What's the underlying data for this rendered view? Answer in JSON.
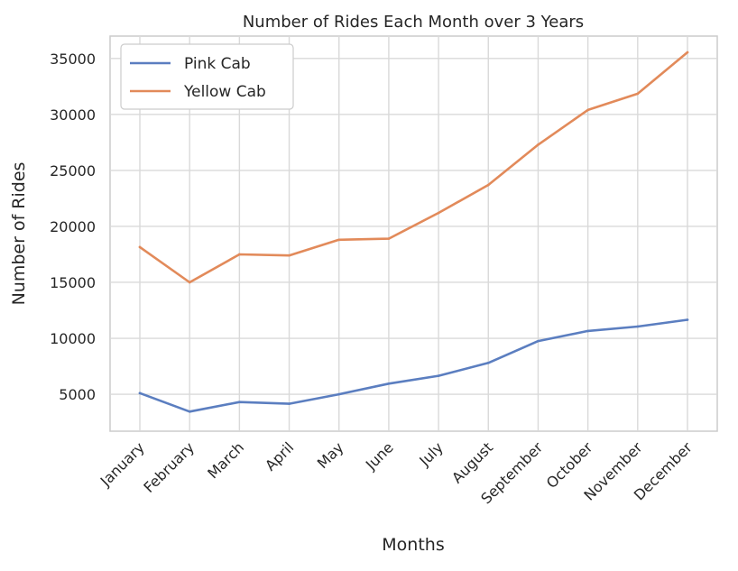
{
  "chart_data": {
    "type": "line",
    "title": "Number of Rides Each Month over 3 Years",
    "xlabel": "Months",
    "ylabel": "Number of Rides",
    "categories": [
      "January",
      "February",
      "March",
      "April",
      "May",
      "June",
      "July",
      "August",
      "September",
      "October",
      "November",
      "December"
    ],
    "yticks": [
      5000,
      10000,
      15000,
      20000,
      25000,
      30000,
      35000
    ],
    "ylim": [
      1700,
      37000
    ],
    "grid": true,
    "legend_position": "upper-left",
    "series": [
      {
        "name": "Pink Cab",
        "color": "#5b7ec0",
        "values": [
          5100,
          3450,
          4300,
          4150,
          5000,
          5950,
          6650,
          7800,
          9750,
          10650,
          11050,
          11650
        ]
      },
      {
        "name": "Yellow Cab",
        "color": "#e28a5a",
        "values": [
          18150,
          15000,
          17500,
          17400,
          18800,
          18900,
          21200,
          23700,
          27300,
          30400,
          31850,
          35550
        ]
      }
    ]
  }
}
